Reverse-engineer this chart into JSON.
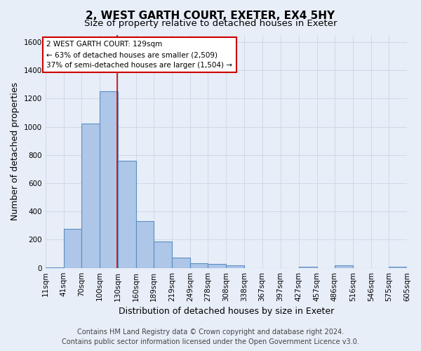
{
  "title": "2, WEST GARTH COURT, EXETER, EX4 5HY",
  "subtitle": "Size of property relative to detached houses in Exeter",
  "xlabel": "Distribution of detached houses by size in Exeter",
  "ylabel": "Number of detached properties",
  "footer_line1": "Contains HM Land Registry data © Crown copyright and database right 2024.",
  "footer_line2": "Contains public sector information licensed under the Open Government Licence v3.0.",
  "annotation_line1": "2 WEST GARTH COURT: 129sqm",
  "annotation_line2": "← 63% of detached houses are smaller (2,509)",
  "annotation_line3": "37% of semi-detached houses are larger (1,504) →",
  "bar_left_edges": [
    11,
    41,
    70,
    100,
    130,
    160,
    189,
    219,
    249,
    278,
    308,
    338,
    367,
    397,
    427,
    457,
    486,
    516,
    546,
    575
  ],
  "bar_widths": [
    30,
    29,
    30,
    30,
    30,
    29,
    30,
    30,
    29,
    30,
    30,
    29,
    30,
    30,
    30,
    29,
    30,
    30,
    29,
    30
  ],
  "bar_heights": [
    5,
    275,
    1025,
    1250,
    760,
    330,
    185,
    75,
    35,
    30,
    20,
    0,
    0,
    0,
    10,
    0,
    20,
    0,
    0,
    10
  ],
  "tick_labels": [
    "11sqm",
    "41sqm",
    "70sqm",
    "100sqm",
    "130sqm",
    "160sqm",
    "189sqm",
    "219sqm",
    "249sqm",
    "278sqm",
    "308sqm",
    "338sqm",
    "367sqm",
    "397sqm",
    "427sqm",
    "457sqm",
    "486sqm",
    "516sqm",
    "546sqm",
    "575sqm",
    "605sqm"
  ],
  "bar_color": "#aec6e8",
  "bar_edge_color": "#5a8fc2",
  "bar_edge_width": 0.8,
  "grid_color": "#d0d8e8",
  "vline_color": "#cc0000",
  "vline_x": 129,
  "ylim": [
    0,
    1650
  ],
  "yticks": [
    0,
    200,
    400,
    600,
    800,
    1000,
    1200,
    1400,
    1600
  ],
  "bg_color": "#e8eef8",
  "plot_bg_color": "#e8eef8",
  "annotation_box_color": "#ffffff",
  "annotation_box_edge_color": "#cc0000",
  "title_fontsize": 11,
  "subtitle_fontsize": 9.5,
  "axis_label_fontsize": 9,
  "tick_fontsize": 7.5,
  "annotation_fontsize": 7.5,
  "footer_fontsize": 7
}
